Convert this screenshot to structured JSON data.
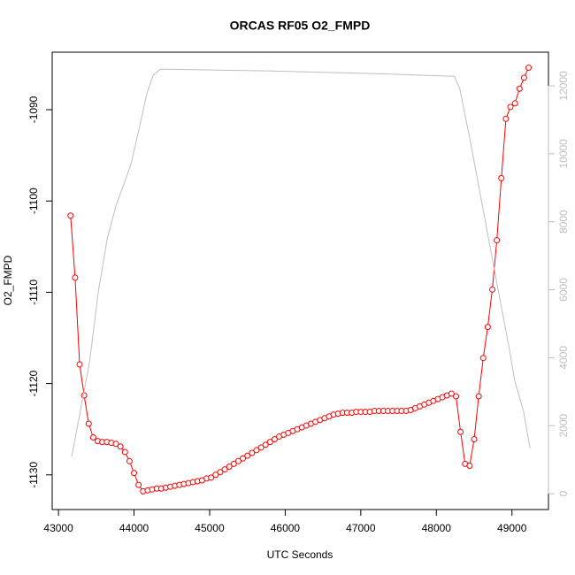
{
  "chart_data": {
    "type": "line",
    "title": "ORCAS RF05 O2_FMPD",
    "x_label": "UTC Seconds",
    "y_label": "O2_FMPD",
    "xlim": [
      42917,
      49483
    ],
    "xticks": [
      43000,
      44000,
      45000,
      46000,
      47000,
      48000,
      49000
    ],
    "ylim": [
      -1133.8,
      -1083.7
    ],
    "yticks": [
      -1130,
      -1120,
      -1110,
      -1100,
      -1090
    ],
    "y2lim": [
      -469,
      12989
    ],
    "y2ticks": [
      0,
      2000,
      4000,
      6000,
      8000,
      10000,
      12000
    ],
    "series": [
      {
        "color": "#ff0000",
        "marker": "circle",
        "x": [
          43160,
          43220,
          43280,
          43340,
          43400,
          43460,
          43520,
          43580,
          43640,
          43700,
          43760,
          43820,
          43880,
          43940,
          44000,
          44060,
          44120,
          44180,
          44240,
          44300,
          44360,
          44420,
          44480,
          44540,
          44600,
          44660,
          44720,
          44780,
          44840,
          44900,
          44960,
          45020,
          45080,
          45140,
          45200,
          45260,
          45320,
          45380,
          45440,
          45500,
          45560,
          45620,
          45680,
          45740,
          45800,
          45860,
          45920,
          45980,
          46040,
          46100,
          46160,
          46220,
          46280,
          46340,
          46400,
          46460,
          46520,
          46580,
          46640,
          46700,
          46760,
          46820,
          46880,
          46940,
          47000,
          47060,
          47120,
          47180,
          47240,
          47300,
          47360,
          47420,
          47480,
          47540,
          47600,
          47660,
          47720,
          47780,
          47840,
          47900,
          47960,
          48020,
          48080,
          48140,
          48200,
          48260,
          48320,
          48380,
          48440,
          48500,
          48560,
          48620,
          48680,
          48740,
          48800,
          48860,
          48920,
          48980,
          49040,
          49100,
          49160,
          49220
        ],
        "values": [
          -1101.6,
          -1108.4,
          -1117.9,
          -1121.3,
          -1124.4,
          -1125.9,
          -1126.3,
          -1126.4,
          -1126.4,
          -1126.5,
          -1126.6,
          -1126.9,
          -1127.5,
          -1128.5,
          -1129.8,
          -1131.1,
          -1131.8,
          -1131.7,
          -1131.6,
          -1131.5,
          -1131.5,
          -1131.4,
          -1131.3,
          -1131.2,
          -1131.1,
          -1131.0,
          -1130.9,
          -1130.8,
          -1130.7,
          -1130.6,
          -1130.4,
          -1130.3,
          -1130.0,
          -1129.7,
          -1129.4,
          -1129.1,
          -1128.8,
          -1128.5,
          -1128.2,
          -1127.9,
          -1127.6,
          -1127.3,
          -1127.0,
          -1126.7,
          -1126.4,
          -1126.1,
          -1125.8,
          -1125.6,
          -1125.4,
          -1125.2,
          -1125.0,
          -1124.8,
          -1124.6,
          -1124.4,
          -1124.2,
          -1124.0,
          -1123.8,
          -1123.6,
          -1123.4,
          -1123.3,
          -1123.2,
          -1123.2,
          -1123.2,
          -1123.1,
          -1123.1,
          -1123.1,
          -1123.1,
          -1123.0,
          -1123.0,
          -1123.0,
          -1123.0,
          -1123.0,
          -1123.0,
          -1123.0,
          -1123.0,
          -1122.9,
          -1122.7,
          -1122.5,
          -1122.3,
          -1122.1,
          -1121.9,
          -1121.7,
          -1121.5,
          -1121.3,
          -1121.1,
          -1121.4,
          -1125.3,
          -1128.8,
          -1129.0,
          -1126.1,
          -1121.4,
          -1117.2,
          -1113.8,
          -1109.7,
          -1104.3,
          -1097.5,
          -1091.0,
          -1089.7,
          -1089.3,
          -1087.7,
          -1086.5,
          -1085.4
        ]
      },
      {
        "color": "#bebebe",
        "axis": "y2",
        "x": [
          43176,
          43410,
          43527,
          43645,
          43762,
          43879,
          43961,
          44055,
          44172,
          44254,
          44348,
          45754,
          47160,
          48238,
          48309,
          48450,
          48625,
          48801,
          48977,
          49036,
          49153,
          49240
        ],
        "values": [
          1093,
          3850,
          5930,
          7500,
          8480,
          9190,
          9710,
          10620,
          11790,
          12310,
          12490,
          12440,
          12360,
          12280,
          11920,
          10360,
          8280,
          6190,
          4110,
          3330,
          2420,
          1330
        ]
      }
    ]
  }
}
